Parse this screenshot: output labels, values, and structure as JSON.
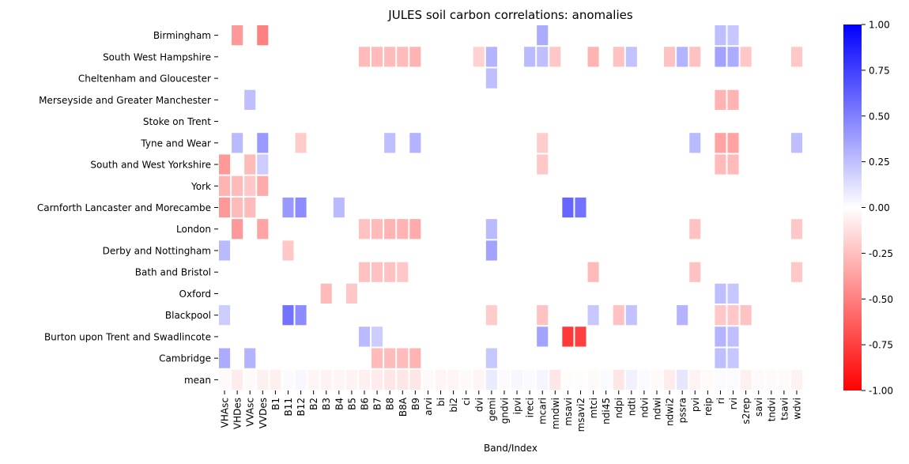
{
  "chart_data": {
    "type": "heatmap",
    "title": "JULES soil carbon correlations: anomalies",
    "xlabel": "Band/Index",
    "ylabel": "",
    "columns": [
      "VHAsc",
      "VHDes",
      "VVAsc",
      "VVDes",
      "B1",
      "B11",
      "B12",
      "B2",
      "B3",
      "B4",
      "B5",
      "B6",
      "B7",
      "B8",
      "B8A",
      "B9",
      "arvi",
      "bi",
      "bi2",
      "ci",
      "dvi",
      "gemi",
      "gndvi",
      "ipvi",
      "ireci",
      "mcari",
      "mndwi",
      "msavi",
      "msavi2",
      "mtci",
      "ndi45",
      "ndpi",
      "ndti",
      "ndvi",
      "ndwi",
      "ndwi2",
      "pssra",
      "pvi",
      "reip",
      "ri",
      "rvi",
      "s2rep",
      "savi",
      "tndvi",
      "tsavi",
      "wdvi"
    ],
    "rows": [
      "Birmingham",
      "South West Hampshire",
      "Cheltenham and Gloucester",
      "Merseyside and Greater Manchester",
      "Stoke on Trent",
      "Tyne and Wear",
      "South and West Yorkshire",
      "York",
      "Carnforth Lancaster and Morecambe",
      "London",
      "Derby and Nottingham",
      "Bath and Bristol",
      "Oxford",
      "Blackpool",
      "Burton upon Trent and Swadlincote",
      "Cambridge",
      "mean"
    ],
    "cells": [
      {
        "row": "Birmingham",
        "col": "VHDes",
        "value": -0.4
      },
      {
        "row": "Birmingham",
        "col": "VVDes",
        "value": -0.5
      },
      {
        "row": "Birmingham",
        "col": "mcari",
        "value": 0.33
      },
      {
        "row": "Birmingham",
        "col": "ri",
        "value": 0.25
      },
      {
        "row": "Birmingham",
        "col": "rvi",
        "value": 0.22
      },
      {
        "row": "South West Hampshire",
        "col": "B6",
        "value": -0.27
      },
      {
        "row": "South West Hampshire",
        "col": "B7",
        "value": -0.27
      },
      {
        "row": "South West Hampshire",
        "col": "B8",
        "value": -0.27
      },
      {
        "row": "South West Hampshire",
        "col": "B8A",
        "value": -0.27
      },
      {
        "row": "South West Hampshire",
        "col": "B9",
        "value": -0.3
      },
      {
        "row": "South West Hampshire",
        "col": "dvi",
        "value": -0.18
      },
      {
        "row": "South West Hampshire",
        "col": "gemi",
        "value": 0.3
      },
      {
        "row": "South West Hampshire",
        "col": "ireci",
        "value": 0.27
      },
      {
        "row": "South West Hampshire",
        "col": "mcari",
        "value": 0.25
      },
      {
        "row": "South West Hampshire",
        "col": "mndwi",
        "value": -0.22
      },
      {
        "row": "South West Hampshire",
        "col": "mtci",
        "value": -0.3
      },
      {
        "row": "South West Hampshire",
        "col": "ndpi",
        "value": -0.24
      },
      {
        "row": "South West Hampshire",
        "col": "ndti",
        "value": 0.24
      },
      {
        "row": "South West Hampshire",
        "col": "ndwi2",
        "value": -0.24
      },
      {
        "row": "South West Hampshire",
        "col": "pssra",
        "value": 0.3
      },
      {
        "row": "South West Hampshire",
        "col": "pvi",
        "value": -0.24
      },
      {
        "row": "South West Hampshire",
        "col": "ri",
        "value": 0.36
      },
      {
        "row": "South West Hampshire",
        "col": "rvi",
        "value": 0.33
      },
      {
        "row": "South West Hampshire",
        "col": "s2rep",
        "value": -0.22
      },
      {
        "row": "South West Hampshire",
        "col": "wdvi",
        "value": -0.22
      },
      {
        "row": "Cheltenham and Gloucester",
        "col": "gemi",
        "value": 0.25
      },
      {
        "row": "Merseyside and Greater Manchester",
        "col": "VVAsc",
        "value": 0.25
      },
      {
        "row": "Merseyside and Greater Manchester",
        "col": "ri",
        "value": -0.3
      },
      {
        "row": "Merseyside and Greater Manchester",
        "col": "rvi",
        "value": -0.3
      },
      {
        "row": "Tyne and Wear",
        "col": "VHDes",
        "value": 0.27
      },
      {
        "row": "Tyne and Wear",
        "col": "VVDes",
        "value": 0.4
      },
      {
        "row": "Tyne and Wear",
        "col": "B12",
        "value": -0.2
      },
      {
        "row": "Tyne and Wear",
        "col": "B8",
        "value": 0.25
      },
      {
        "row": "Tyne and Wear",
        "col": "B9",
        "value": 0.3
      },
      {
        "row": "Tyne and Wear",
        "col": "mcari",
        "value": -0.2
      },
      {
        "row": "Tyne and Wear",
        "col": "pvi",
        "value": 0.27
      },
      {
        "row": "Tyne and Wear",
        "col": "ri",
        "value": -0.36
      },
      {
        "row": "Tyne and Wear",
        "col": "rvi",
        "value": -0.36
      },
      {
        "row": "Tyne and Wear",
        "col": "wdvi",
        "value": 0.25
      },
      {
        "row": "South and West Yorkshire",
        "col": "VHAsc",
        "value": -0.4
      },
      {
        "row": "South and West Yorkshire",
        "col": "VVAsc",
        "value": -0.27
      },
      {
        "row": "South and West Yorkshire",
        "col": "VVDes",
        "value": 0.2
      },
      {
        "row": "South and West Yorkshire",
        "col": "mcari",
        "value": -0.22
      },
      {
        "row": "South and West Yorkshire",
        "col": "ri",
        "value": -0.27
      },
      {
        "row": "South and West Yorkshire",
        "col": "rvi",
        "value": -0.27
      },
      {
        "row": "York",
        "col": "VHAsc",
        "value": -0.3
      },
      {
        "row": "York",
        "col": "VHDes",
        "value": -0.27
      },
      {
        "row": "York",
        "col": "VVAsc",
        "value": -0.22
      },
      {
        "row": "York",
        "col": "VVDes",
        "value": -0.33
      },
      {
        "row": "Carnforth Lancaster and Morecambe",
        "col": "VHAsc",
        "value": -0.4
      },
      {
        "row": "Carnforth Lancaster and Morecambe",
        "col": "VHDes",
        "value": -0.27
      },
      {
        "row": "Carnforth Lancaster and Morecambe",
        "col": "VVAsc",
        "value": -0.27
      },
      {
        "row": "Carnforth Lancaster and Morecambe",
        "col": "B11",
        "value": 0.4
      },
      {
        "row": "Carnforth Lancaster and Morecambe",
        "col": "B12",
        "value": 0.45
      },
      {
        "row": "Carnforth Lancaster and Morecambe",
        "col": "B4",
        "value": 0.27
      },
      {
        "row": "Carnforth Lancaster and Morecambe",
        "col": "msavi",
        "value": 0.6
      },
      {
        "row": "Carnforth Lancaster and Morecambe",
        "col": "msavi2",
        "value": 0.55
      },
      {
        "row": "London",
        "col": "VHDes",
        "value": -0.4
      },
      {
        "row": "London",
        "col": "VVDes",
        "value": -0.36
      },
      {
        "row": "London",
        "col": "B6",
        "value": -0.24
      },
      {
        "row": "London",
        "col": "B7",
        "value": -0.27
      },
      {
        "row": "London",
        "col": "B8",
        "value": -0.3
      },
      {
        "row": "London",
        "col": "B8A",
        "value": -0.3
      },
      {
        "row": "London",
        "col": "B9",
        "value": -0.33
      },
      {
        "row": "London",
        "col": "gemi",
        "value": 0.27
      },
      {
        "row": "London",
        "col": "pvi",
        "value": -0.24
      },
      {
        "row": "London",
        "col": "wdvi",
        "value": -0.22
      },
      {
        "row": "Derby and Nottingham",
        "col": "VHAsc",
        "value": 0.27
      },
      {
        "row": "Derby and Nottingham",
        "col": "B11",
        "value": -0.22
      },
      {
        "row": "Derby and Nottingham",
        "col": "gemi",
        "value": 0.36
      },
      {
        "row": "Bath and Bristol",
        "col": "B6",
        "value": -0.24
      },
      {
        "row": "Bath and Bristol",
        "col": "B7",
        "value": -0.24
      },
      {
        "row": "Bath and Bristol",
        "col": "B8",
        "value": -0.24
      },
      {
        "row": "Bath and Bristol",
        "col": "B8A",
        "value": -0.22
      },
      {
        "row": "Bath and Bristol",
        "col": "mtci",
        "value": -0.27
      },
      {
        "row": "Bath and Bristol",
        "col": "pvi",
        "value": -0.24
      },
      {
        "row": "Bath and Bristol",
        "col": "wdvi",
        "value": -0.22
      },
      {
        "row": "Oxford",
        "col": "B3",
        "value": -0.27
      },
      {
        "row": "Oxford",
        "col": "B5",
        "value": -0.22
      },
      {
        "row": "Oxford",
        "col": "ri",
        "value": 0.25
      },
      {
        "row": "Oxford",
        "col": "rvi",
        "value": 0.22
      },
      {
        "row": "Blackpool",
        "col": "VHAsc",
        "value": 0.2
      },
      {
        "row": "Blackpool",
        "col": "B11",
        "value": 0.55
      },
      {
        "row": "Blackpool",
        "col": "B12",
        "value": 0.45
      },
      {
        "row": "Blackpool",
        "col": "gemi",
        "value": -0.2
      },
      {
        "row": "Blackpool",
        "col": "mcari",
        "value": -0.24
      },
      {
        "row": "Blackpool",
        "col": "mtci",
        "value": 0.22
      },
      {
        "row": "Blackpool",
        "col": "ndpi",
        "value": -0.24
      },
      {
        "row": "Blackpool",
        "col": "ndti",
        "value": 0.24
      },
      {
        "row": "Blackpool",
        "col": "pssra",
        "value": 0.3
      },
      {
        "row": "Blackpool",
        "col": "ri",
        "value": -0.22
      },
      {
        "row": "Blackpool",
        "col": "rvi",
        "value": -0.22
      },
      {
        "row": "Blackpool",
        "col": "s2rep",
        "value": -0.24
      },
      {
        "row": "Burton upon Trent and Swadlincote",
        "col": "B6",
        "value": 0.27
      },
      {
        "row": "Burton upon Trent and Swadlincote",
        "col": "B7",
        "value": 0.2
      },
      {
        "row": "Burton upon Trent and Swadlincote",
        "col": "mcari",
        "value": 0.36
      },
      {
        "row": "Burton upon Trent and Swadlincote",
        "col": "msavi",
        "value": -0.78
      },
      {
        "row": "Burton upon Trent and Swadlincote",
        "col": "msavi2",
        "value": -0.75
      },
      {
        "row": "Burton upon Trent and Swadlincote",
        "col": "ri",
        "value": 0.3
      },
      {
        "row": "Burton upon Trent and Swadlincote",
        "col": "rvi",
        "value": 0.25
      },
      {
        "row": "Cambridge",
        "col": "VHAsc",
        "value": 0.33
      },
      {
        "row": "Cambridge",
        "col": "VVAsc",
        "value": 0.3
      },
      {
        "row": "Cambridge",
        "col": "B7",
        "value": -0.27
      },
      {
        "row": "Cambridge",
        "col": "B8",
        "value": -0.27
      },
      {
        "row": "Cambridge",
        "col": "B8A",
        "value": -0.27
      },
      {
        "row": "Cambridge",
        "col": "B9",
        "value": -0.3
      },
      {
        "row": "Cambridge",
        "col": "gemi",
        "value": 0.22
      },
      {
        "row": "Cambridge",
        "col": "ri",
        "value": 0.25
      },
      {
        "row": "Cambridge",
        "col": "rvi",
        "value": 0.22
      },
      {
        "row": "mean",
        "col": "VHAsc",
        "value": -0.02
      },
      {
        "row": "mean",
        "col": "VHDes",
        "value": -0.08
      },
      {
        "row": "mean",
        "col": "VVAsc",
        "value": -0.02
      },
      {
        "row": "mean",
        "col": "VVDes",
        "value": -0.06
      },
      {
        "row": "mean",
        "col": "B1",
        "value": -0.06
      },
      {
        "row": "mean",
        "col": "B11",
        "value": 0.02
      },
      {
        "row": "mean",
        "col": "B12",
        "value": 0.03
      },
      {
        "row": "mean",
        "col": "B2",
        "value": -0.04
      },
      {
        "row": "mean",
        "col": "B3",
        "value": -0.05
      },
      {
        "row": "mean",
        "col": "B4",
        "value": -0.04
      },
      {
        "row": "mean",
        "col": "B5",
        "value": -0.05
      },
      {
        "row": "mean",
        "col": "B6",
        "value": -0.06
      },
      {
        "row": "mean",
        "col": "B7",
        "value": -0.08
      },
      {
        "row": "mean",
        "col": "B8",
        "value": -0.1
      },
      {
        "row": "mean",
        "col": "B8A",
        "value": -0.1
      },
      {
        "row": "mean",
        "col": "B9",
        "value": -0.1
      },
      {
        "row": "mean",
        "col": "arvi",
        "value": -0.02
      },
      {
        "row": "mean",
        "col": "bi",
        "value": -0.04
      },
      {
        "row": "mean",
        "col": "bi2",
        "value": -0.04
      },
      {
        "row": "mean",
        "col": "ci",
        "value": -0.02
      },
      {
        "row": "mean",
        "col": "dvi",
        "value": -0.04
      },
      {
        "row": "mean",
        "col": "gemi",
        "value": 0.08
      },
      {
        "row": "mean",
        "col": "gndvi",
        "value": 0.02
      },
      {
        "row": "mean",
        "col": "ipvi",
        "value": 0.03
      },
      {
        "row": "mean",
        "col": "ireci",
        "value": 0.02
      },
      {
        "row": "mean",
        "col": "mcari",
        "value": 0.04
      },
      {
        "row": "mean",
        "col": "mndwi",
        "value": -0.1
      },
      {
        "row": "mean",
        "col": "msavi",
        "value": -0.01
      },
      {
        "row": "mean",
        "col": "msavi2",
        "value": -0.01
      },
      {
        "row": "mean",
        "col": "mtci",
        "value": -0.02
      },
      {
        "row": "mean",
        "col": "ndi45",
        "value": 0.02
      },
      {
        "row": "mean",
        "col": "ndpi",
        "value": -0.1
      },
      {
        "row": "mean",
        "col": "ndti",
        "value": 0.06
      },
      {
        "row": "mean",
        "col": "ndvi",
        "value": 0.02
      },
      {
        "row": "mean",
        "col": "ndwi",
        "value": -0.02
      },
      {
        "row": "mean",
        "col": "ndwi2",
        "value": -0.08
      },
      {
        "row": "mean",
        "col": "pssra",
        "value": 0.1
      },
      {
        "row": "mean",
        "col": "pvi",
        "value": -0.05
      },
      {
        "row": "mean",
        "col": "reip",
        "value": -0.02
      },
      {
        "row": "mean",
        "col": "ri",
        "value": 0.02
      },
      {
        "row": "mean",
        "col": "rvi",
        "value": 0.02
      },
      {
        "row": "mean",
        "col": "s2rep",
        "value": -0.06
      },
      {
        "row": "mean",
        "col": "savi",
        "value": -0.02
      },
      {
        "row": "mean",
        "col": "tndvi",
        "value": -0.02
      },
      {
        "row": "mean",
        "col": "tsavi",
        "value": -0.02
      },
      {
        "row": "mean",
        "col": "wdvi",
        "value": -0.05
      }
    ],
    "colorbar": {
      "min": -1.0,
      "max": 1.0,
      "ticks": [
        "1.00",
        "0.75",
        "0.50",
        "0.25",
        "0.00",
        "-0.25",
        "-0.50",
        "-0.75",
        "-1.00"
      ],
      "colors": {
        "negative": "#ff0000",
        "zero": "#ffffff",
        "positive": "#0000ff"
      }
    },
    "grid": false
  }
}
